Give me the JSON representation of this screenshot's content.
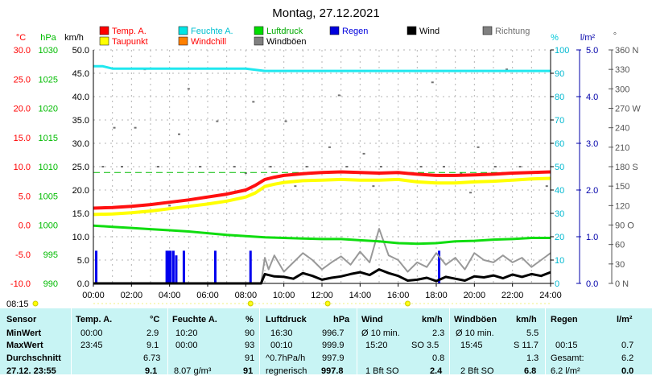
{
  "chart_data": {
    "type": "line",
    "title": "Montag, 27.12.2021",
    "x_ticks": [
      "00:00",
      "02:00",
      "04:00",
      "06:00",
      "08:00",
      "10:00",
      "12:00",
      "14:00",
      "16:00",
      "18:00",
      "20:00",
      "22:00",
      "24:00"
    ],
    "xlim_hours": [
      0,
      24
    ],
    "axes": {
      "temp": {
        "unit": "°C",
        "ticks": [
          "30.0",
          "25.0",
          "20.0",
          "15.0",
          "10.0",
          "5.0",
          "0.0",
          "-5.0",
          "-10.0"
        ],
        "range": [
          -10,
          30
        ],
        "color": "#ff0000"
      },
      "press": {
        "unit": "hPa",
        "ticks": [
          "1030",
          "1025",
          "1020",
          "1015",
          "1010",
          "1005",
          "1000",
          "995",
          "990"
        ],
        "range": [
          990,
          1030
        ],
        "color": "#00bb00"
      },
      "wind": {
        "unit": "km/h",
        "ticks": [
          "50.0",
          "45.0",
          "40.0",
          "35.0",
          "30.0",
          "25.0",
          "20.0",
          "15.0",
          "10.0",
          "5.0",
          "0.0"
        ],
        "range": [
          0,
          50
        ],
        "color": "#000000"
      },
      "hum": {
        "unit": "%",
        "ticks": [
          "100",
          "90",
          "80",
          "70",
          "60",
          "50",
          "40",
          "30",
          "20",
          "10",
          "0"
        ],
        "range": [
          0,
          100
        ],
        "color": "#00c8d8"
      },
      "rain": {
        "unit": "l/m²",
        "ticks": [
          "5.0",
          "4.0",
          "3.0",
          "2.0",
          "1.0",
          "0.0"
        ],
        "range": [
          0,
          5
        ],
        "color": "#0000aa"
      },
      "dir": {
        "unit": "°",
        "ticks": [
          "360 N",
          "330",
          "300",
          "270 W",
          "240",
          "210",
          "180 S",
          "150",
          "120",
          "90 O",
          "60",
          "30",
          "0 N"
        ],
        "range": [
          0,
          360
        ],
        "color": "#666666"
      }
    },
    "legend": [
      {
        "name": "Temp. A.",
        "color": "#ff0000"
      },
      {
        "name": "Feuchte A.",
        "color": "#00e5e5"
      },
      {
        "name": "Luftdruck",
        "color": "#00dd00"
      },
      {
        "name": "Regen",
        "color": "#0000dd"
      },
      {
        "name": "Wind",
        "color": "#000000"
      },
      {
        "name": "Richtung",
        "color": "#808080"
      },
      {
        "name": "Taupunkt",
        "color": "#ffff00"
      },
      {
        "name": "Windchill",
        "color": "#ff8000"
      },
      {
        "name": "Windböen",
        "color": "#808080"
      }
    ],
    "series": [
      {
        "key": "temp",
        "axis": "temp",
        "color": "#ff1010",
        "width": 4,
        "x": [
          0,
          1,
          2,
          3,
          4,
          5,
          6,
          7,
          8,
          8.5,
          9,
          9.5,
          10,
          11,
          12,
          13,
          14,
          15,
          16,
          17,
          18,
          19,
          20,
          21,
          22,
          23,
          24
        ],
        "values": [
          2.9,
          3.0,
          3.2,
          3.5,
          3.9,
          4.3,
          4.8,
          5.3,
          6.0,
          6.8,
          7.8,
          8.2,
          8.5,
          8.8,
          9.0,
          9.1,
          9.0,
          8.9,
          9.0,
          8.7,
          8.5,
          8.5,
          8.6,
          8.7,
          8.9,
          9.0,
          9.1
        ]
      },
      {
        "key": "dew",
        "axis": "temp",
        "color": "#ffff00",
        "width": 4,
        "x": [
          0,
          1,
          2,
          3,
          4,
          5,
          6,
          7,
          8,
          8.5,
          9,
          9.5,
          10,
          11,
          12,
          13,
          14,
          15,
          16,
          17,
          18,
          19,
          20,
          21,
          22,
          23,
          24
        ],
        "values": [
          1.8,
          1.9,
          2.1,
          2.4,
          2.8,
          3.2,
          3.6,
          4.1,
          4.8,
          5.5,
          6.6,
          7.0,
          7.3,
          7.6,
          7.7,
          7.8,
          7.7,
          7.7,
          7.8,
          7.4,
          7.2,
          7.2,
          7.4,
          7.5,
          7.7,
          7.9,
          8.0
        ]
      },
      {
        "key": "press",
        "axis": "press",
        "color": "#10dd10",
        "width": 3,
        "x": [
          0,
          1,
          2,
          3,
          4,
          5,
          6,
          7,
          8,
          9,
          10,
          11,
          12,
          13,
          14,
          15,
          16,
          17,
          18,
          19,
          20,
          21,
          22,
          23,
          24
        ],
        "values": [
          999.9,
          999.7,
          999.5,
          999.3,
          999.1,
          998.9,
          998.6,
          998.3,
          998.1,
          997.9,
          997.8,
          997.7,
          997.6,
          997.6,
          997.4,
          997.2,
          996.9,
          996.8,
          996.9,
          997.2,
          997.3,
          997.5,
          997.6,
          997.8,
          997.8
        ]
      },
      {
        "key": "hum",
        "axis": "hum",
        "color": "#20e8ef",
        "width": 3,
        "x": [
          0,
          0.5,
          1,
          4,
          8,
          9,
          10,
          12,
          16,
          20,
          24
        ],
        "values": [
          93,
          93,
          92,
          92,
          92,
          91,
          91,
          91,
          91,
          91,
          91
        ]
      },
      {
        "key": "wind",
        "axis": "wind",
        "color": "#000000",
        "width": 3,
        "x": [
          0,
          8.8,
          9.0,
          9.5,
          10,
          10.5,
          11,
          11.5,
          12,
          12.5,
          13,
          13.5,
          14,
          14.5,
          15,
          15.5,
          16,
          16.5,
          17,
          17.5,
          18,
          18.5,
          19,
          19.5,
          20,
          20.5,
          21,
          21.5,
          22,
          22.5,
          23,
          23.5,
          24
        ],
        "values": [
          0,
          0,
          2.0,
          1.5,
          1.4,
          1.0,
          2.2,
          1.6,
          0.8,
          1.2,
          1.5,
          2.0,
          2.4,
          1.8,
          3.0,
          2.2,
          1.6,
          0.6,
          0.8,
          1.2,
          0.5,
          1.4,
          1.0,
          0.6,
          1.5,
          1.3,
          1.7,
          1.1,
          1.9,
          1.4,
          2.0,
          1.6,
          2.4
        ]
      },
      {
        "key": "gust",
        "axis": "wind",
        "color": "#999999",
        "width": 2,
        "x": [
          0,
          8.8,
          9.0,
          9.2,
          9.5,
          10,
          10.5,
          11,
          11.5,
          12,
          12.5,
          13,
          13.5,
          14,
          14.5,
          15,
          15.5,
          16,
          16.5,
          17,
          17.5,
          18,
          18.5,
          19,
          19.5,
          20,
          20.5,
          21,
          21.5,
          22,
          22.5,
          23,
          23.5,
          24
        ],
        "values": [
          0,
          0,
          5.5,
          3.0,
          6.0,
          2.5,
          4.5,
          6.5,
          5.0,
          3.0,
          4.5,
          5.8,
          4.0,
          6.8,
          4.5,
          11.7,
          6.0,
          5.0,
          2.5,
          4.5,
          3.5,
          6.5,
          4.0,
          5.5,
          3.0,
          6.5,
          5.0,
          4.5,
          6.0,
          4.5,
          5.5,
          3.5,
          5.0,
          6.5
        ]
      }
    ],
    "rain_bars": {
      "axis": "rain",
      "color": "#0000ee",
      "x": [
        0.15,
        3.85,
        3.95,
        4.05,
        4.2,
        4.35,
        4.75,
        6.4,
        8.25,
        18.15
      ],
      "values": [
        0.7,
        0.7,
        0.7,
        0.7,
        0.7,
        0.6,
        0.7,
        0.7,
        0.7,
        0.7
      ]
    },
    "dewpoint_refline": {
      "axis": "temp",
      "value": 9.0,
      "color": "#00bb00"
    },
    "direction_dots": {
      "axis": "dir",
      "color": "#707070",
      "x": [
        0.5,
        1.5,
        2.2,
        3.4,
        4.5,
        5.6,
        6.5,
        7.4,
        8.0,
        9.3,
        10.1,
        11.2,
        12.4,
        13.3,
        14.2,
        15.1,
        16.3,
        17.2,
        18.4,
        19.3,
        20.2,
        21.1,
        22.4,
        23.3,
        2.7,
        5.0,
        8.4,
        12.9,
        17.8,
        21.7,
        1.1,
        4.0,
        10.6,
        14.7,
        19.8,
        23.8
      ],
      "values": [
        180,
        180,
        240,
        180,
        230,
        180,
        250,
        180,
        170,
        180,
        250,
        180,
        210,
        180,
        200,
        180,
        170,
        180,
        180,
        170,
        210,
        180,
        180,
        170,
        330,
        300,
        280,
        290,
        310,
        330,
        240,
        120,
        150,
        150,
        140,
        150
      ]
    },
    "sunrise": "08:15",
    "sun_marks": [
      8.25,
      12.3,
      16.5
    ]
  },
  "stats": {
    "headers": {
      "sensor": "Sensor",
      "temp": "Temp. A.",
      "temp_unit": "°C",
      "hum": "Feuchte A.",
      "hum_unit": "%",
      "press": "Luftdruck",
      "press_unit": "hPa",
      "wind": "Wind",
      "wind_unit": "km/h",
      "gust": "Windböen",
      "gust_unit": "km/h",
      "rain": "Regen",
      "rain_unit": "l/m²"
    },
    "rows": [
      {
        "label": "MinWert",
        "temp_t": "00:00",
        "temp_v": "2.9",
        "hum_t": "10:20",
        "hum_v": "90",
        "press_t": "16:30",
        "press_v": "996.7",
        "wind_t": "Ø 10 min.",
        "wind_v": "2.3",
        "gust_t": "Ø 10 min.",
        "gust_v": "5.5",
        "rain_t": "",
        "rain_v": ""
      },
      {
        "label": "MaxWert",
        "temp_t": "23:45",
        "temp_v": "9.1",
        "hum_t": "00:00",
        "hum_v": "93",
        "press_t": "00:10",
        "press_v": "999.9",
        "wind_t": "15:20",
        "wind_dir": "SO 3.5",
        "wind_v": "",
        "gust_t": "15:45",
        "gust_v": "S 11.7",
        "rain_t": "00:15",
        "rain_v": "0.7"
      },
      {
        "label": "Durchschnitt",
        "temp_t": "",
        "temp_v": "6.73",
        "hum_t": "",
        "hum_v": "91",
        "press_t": "^0.7hPa/h",
        "press_v": "997.9",
        "wind_t": "",
        "wind_v": "0.8",
        "gust_t": "",
        "gust_v": "1.3",
        "rain_t": "Gesamt:",
        "rain_v": "6.2"
      },
      {
        "label": "27.12. 23:55",
        "temp_t": "",
        "temp_v": "9.1",
        "hum_t": "8.07 g/m³",
        "hum_v": "91",
        "press_t": "regnerisch",
        "press_v": "997.8",
        "wind_t": "1 Bft SO",
        "wind_v": "2.4",
        "gust_t": "2 Bft SO",
        "gust_v": "6.8",
        "rain_t": "6.2 l/m²",
        "rain_v": "0.0"
      }
    ]
  }
}
